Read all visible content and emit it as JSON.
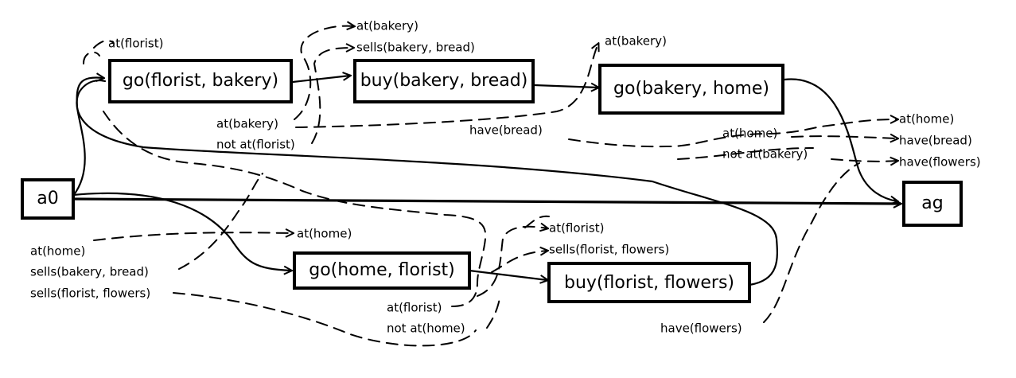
{
  "steps": {
    "a0": "a0",
    "ag": "ag",
    "go_florist_bakery": "go(florist, bakery)",
    "buy_bakery_bread": "buy(bakery, bread)",
    "go_bakery_home": "go(bakery, home)",
    "go_home_florist": "go(home, florist)",
    "buy_florist_flowers": "buy(florist, flowers)"
  },
  "conditions": {
    "pre_go_florist_bakery": [
      "at(florist)"
    ],
    "pre_buy_bakery_bread": [
      "at(bakery)",
      "sells(bakery, bread)"
    ],
    "pre_go_bakery_home": [
      "at(bakery)"
    ],
    "eff_go_florist_bakery": [
      "at(bakery)",
      "not at(florist)"
    ],
    "eff_buy_bakery_bread": [
      "have(bread)"
    ],
    "eff_go_bakery_home": [
      "at(home)",
      "not at(bakery)"
    ],
    "pre_ag": [
      "at(home)",
      "have(bread)",
      "have(flowers)"
    ],
    "eff_a0": [
      "at(home)",
      "sells(bakery, bread)",
      "sells(florist, flowers)"
    ],
    "pre_go_home_florist": [
      "at(home)"
    ],
    "pre_buy_florist_flowers": [
      "at(florist)",
      "sells(florist, flowers)"
    ],
    "eff_go_home_florist": [
      "at(florist)",
      "not at(home)"
    ],
    "eff_buy_florist_flowers": [
      "have(flowers)"
    ]
  }
}
